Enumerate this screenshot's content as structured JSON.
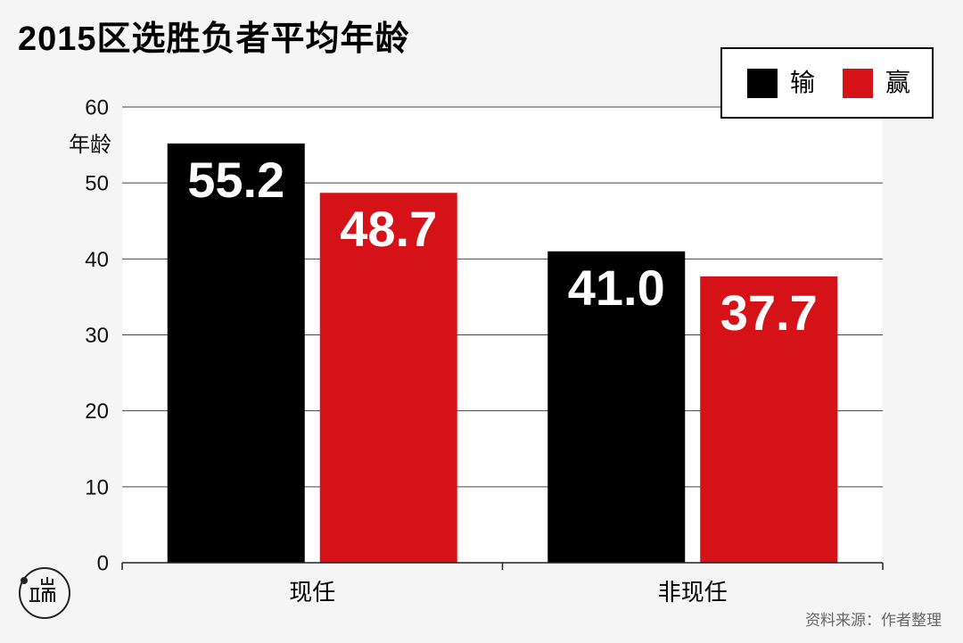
{
  "colors": {
    "background": "#f5f5f5",
    "plot_background": "#ffffff",
    "gridline": "#444444",
    "axis": "#222222",
    "text": "#111111",
    "data_label": "#ffffff",
    "source_text": "#666666"
  },
  "source": "资料来源：作者整理",
  "chart_data": {
    "type": "bar",
    "title": "2015区选胜负者平均年龄",
    "ylabel": "年龄",
    "categories": [
      "现任",
      "非现任"
    ],
    "series": [
      {
        "name": "输",
        "color": "#000000",
        "values": [
          55.2,
          41.0
        ],
        "data_labels": [
          "55.2",
          "41.0"
        ]
      },
      {
        "name": "赢",
        "color": "#d41217",
        "values": [
          48.7,
          37.7
        ],
        "data_labels": [
          "48.7",
          "37.7"
        ]
      }
    ],
    "ylim": [
      0,
      60
    ],
    "yticks": [
      0,
      10,
      20,
      30,
      40,
      50,
      60
    ],
    "grid": true,
    "legend_position": "top-right"
  }
}
